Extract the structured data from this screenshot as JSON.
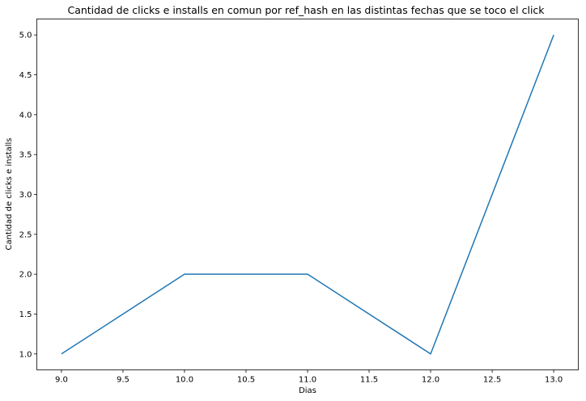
{
  "chart_data": {
    "type": "line",
    "title": "Cantidad de clicks e installs en comun por ref_hash en las distintas fechas que se toco el click",
    "xlabel": "Dias",
    "ylabel": "Cantidad de clicks e installs",
    "x": [
      9.0,
      10.0,
      11.0,
      12.0,
      13.0
    ],
    "series": [
      {
        "values": [
          1.0,
          2.0,
          2.0,
          1.0,
          5.0
        ],
        "color": "#1f77b4"
      }
    ],
    "xlim": [
      8.8,
      13.2
    ],
    "ylim": [
      0.8,
      5.2
    ],
    "xticks": [
      "9.0",
      "9.5",
      "10.0",
      "10.5",
      "11.0",
      "11.5",
      "12.0",
      "12.5",
      "13.0"
    ],
    "yticks": [
      "1.0",
      "1.5",
      "2.0",
      "2.5",
      "3.0",
      "3.5",
      "4.0",
      "4.5",
      "5.0"
    ],
    "grid": false,
    "legend": "none"
  }
}
